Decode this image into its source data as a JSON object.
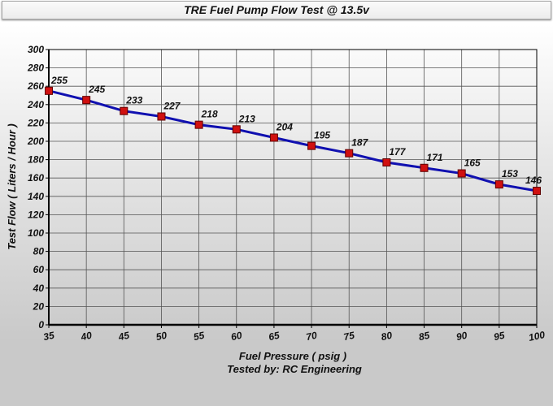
{
  "chart_data": {
    "type": "line",
    "title": "TRE Fuel Pump Flow Test @ 13.5v",
    "xlabel": "Fuel Pressure ( psig )",
    "subtitle": "Tested by: RC Engineering",
    "ylabel": "Test Flow ( Liters / Hour )",
    "x": [
      35,
      40,
      45,
      50,
      55,
      60,
      65,
      70,
      75,
      80,
      85,
      90,
      95,
      100
    ],
    "series": [
      {
        "values": [
          255,
          245,
          233,
          227,
          218,
          213,
          204,
          195,
          187,
          177,
          171,
          165,
          153,
          146
        ]
      }
    ],
    "xlim": [
      35,
      100
    ],
    "ylim": [
      0,
      300
    ],
    "ytick_step": 20,
    "grid": true,
    "legend": "none",
    "colors": {
      "line": "#1010b0",
      "marker": "#d01010",
      "marker_border": "#600000"
    }
  }
}
